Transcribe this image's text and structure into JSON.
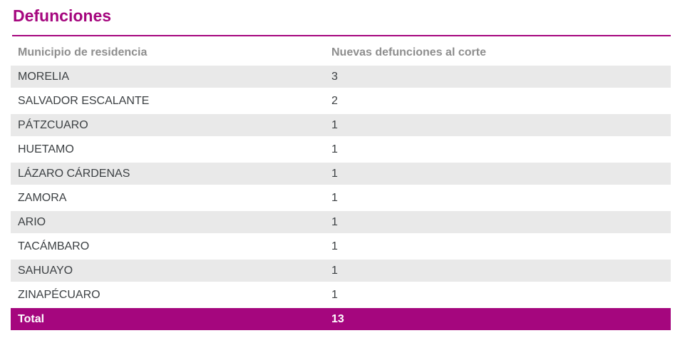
{
  "page": {
    "title": "Defunciones",
    "colors": {
      "accent": "#A5067E",
      "header_text": "#8E8E8E",
      "row_text": "#3C4043",
      "alt_row_bg": "#E9E9E9",
      "total_text": "#FFFFFF"
    }
  },
  "table": {
    "columns": [
      "Municipio de residencia",
      "Nuevas defunciones al corte"
    ],
    "rows": [
      {
        "municipio": "MORELIA",
        "valor": "3"
      },
      {
        "municipio": "SALVADOR ESCALANTE",
        "valor": "2"
      },
      {
        "municipio": "PÁTZCUARO",
        "valor": "1"
      },
      {
        "municipio": "HUETAMO",
        "valor": "1"
      },
      {
        "municipio": "LÁZARO CÁRDENAS",
        "valor": "1"
      },
      {
        "municipio": "ZAMORA",
        "valor": "1"
      },
      {
        "municipio": "ARIO",
        "valor": "1"
      },
      {
        "municipio": "TACÁMBARO",
        "valor": "1"
      },
      {
        "municipio": "SAHUAYO",
        "valor": "1"
      },
      {
        "municipio": "ZINAPÉCUARO",
        "valor": "1"
      }
    ],
    "total": {
      "label": "Total",
      "valor": "13"
    }
  },
  "chart_data": {
    "type": "table",
    "title": "Defunciones",
    "columns": [
      "Municipio de residencia",
      "Nuevas defunciones al corte"
    ],
    "categories": [
      "MORELIA",
      "SALVADOR ESCALANTE",
      "PÁTZCUARO",
      "HUETAMO",
      "LÁZARO CÁRDENAS",
      "ZAMORA",
      "ARIO",
      "TACÁMBARO",
      "SAHUAYO",
      "ZINAPÉCUARO"
    ],
    "values": [
      3,
      2,
      1,
      1,
      1,
      1,
      1,
      1,
      1,
      1
    ],
    "total": 13,
    "legend_position": "none",
    "grid": false
  }
}
